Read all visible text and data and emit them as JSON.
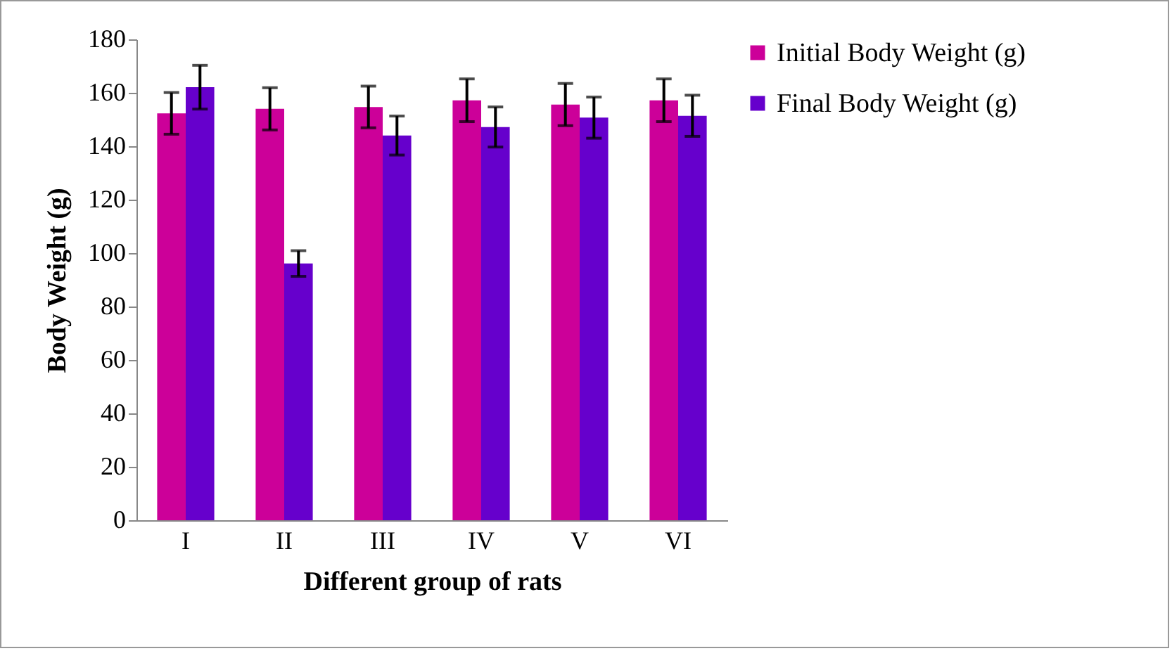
{
  "chart_data": {
    "type": "bar",
    "xlabel": "Different group of rats",
    "ylabel": "Body Weight (g)",
    "categories": [
      "I",
      "II",
      "III",
      "IV",
      "V",
      "VI"
    ],
    "series": [
      {
        "name": "Initial Body Weight (g)",
        "color": "#cc0099",
        "values": [
          152.3,
          154,
          154.7,
          157.2,
          155.6,
          157.2
        ],
        "errors": [
          7.8,
          7.9,
          7.8,
          8,
          7.9,
          8
        ]
      },
      {
        "name": "Final Body Weight (g)",
        "color": "#6600cc",
        "values": [
          162.1,
          96.1,
          144,
          147.2,
          150.7,
          151.4
        ],
        "errors": [
          8.2,
          4.8,
          7.3,
          7.5,
          7.7,
          7.7
        ]
      }
    ],
    "ylim": [
      0,
      180
    ],
    "yticks": [
      0,
      20,
      40,
      60,
      80,
      100,
      120,
      140,
      160,
      180
    ],
    "grid": false,
    "legend": "right"
  }
}
